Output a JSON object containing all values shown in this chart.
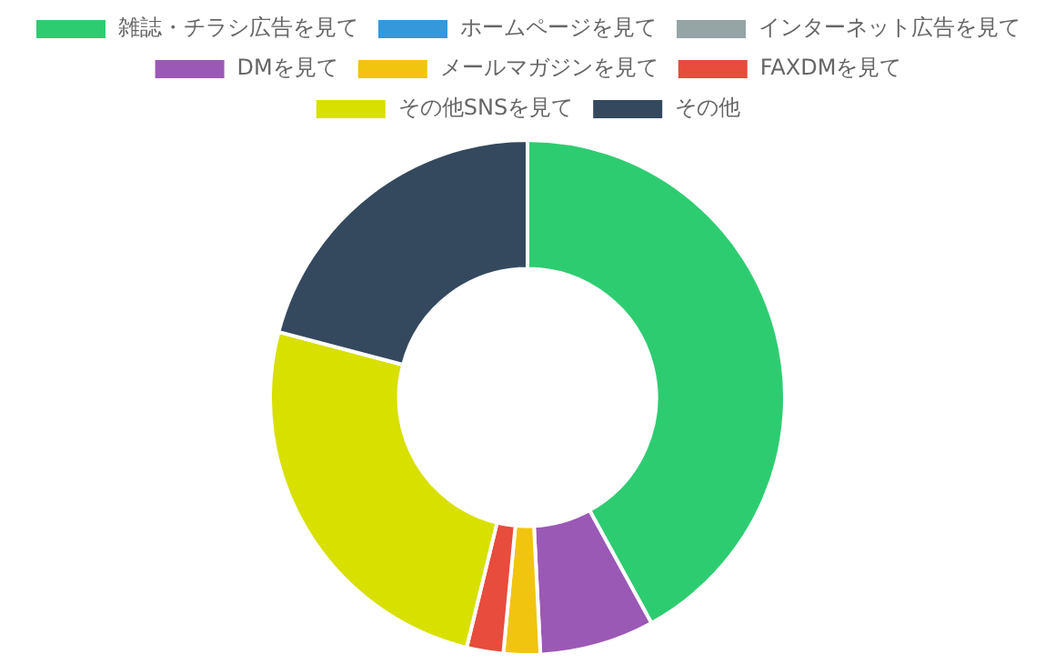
{
  "chart_data": {
    "type": "donut",
    "categories": [
      "雑誌・チラシ広告を見て",
      "ホームページを見て",
      "インターネット広告を見て",
      "DMを見て",
      "メールマガジンを見て",
      "FAXDMを見て",
      "その他SNSを見て",
      "その他"
    ],
    "values": [
      42,
      0,
      0,
      7.2,
      2.3,
      2.3,
      25.3,
      20.9
    ],
    "colors": [
      "#2ecc71",
      "#3498db",
      "#95a5a6",
      "#9b59b6",
      "#f1c40f",
      "#e74c3c",
      "#d8e000",
      "#34495e"
    ],
    "legend": "top"
  }
}
